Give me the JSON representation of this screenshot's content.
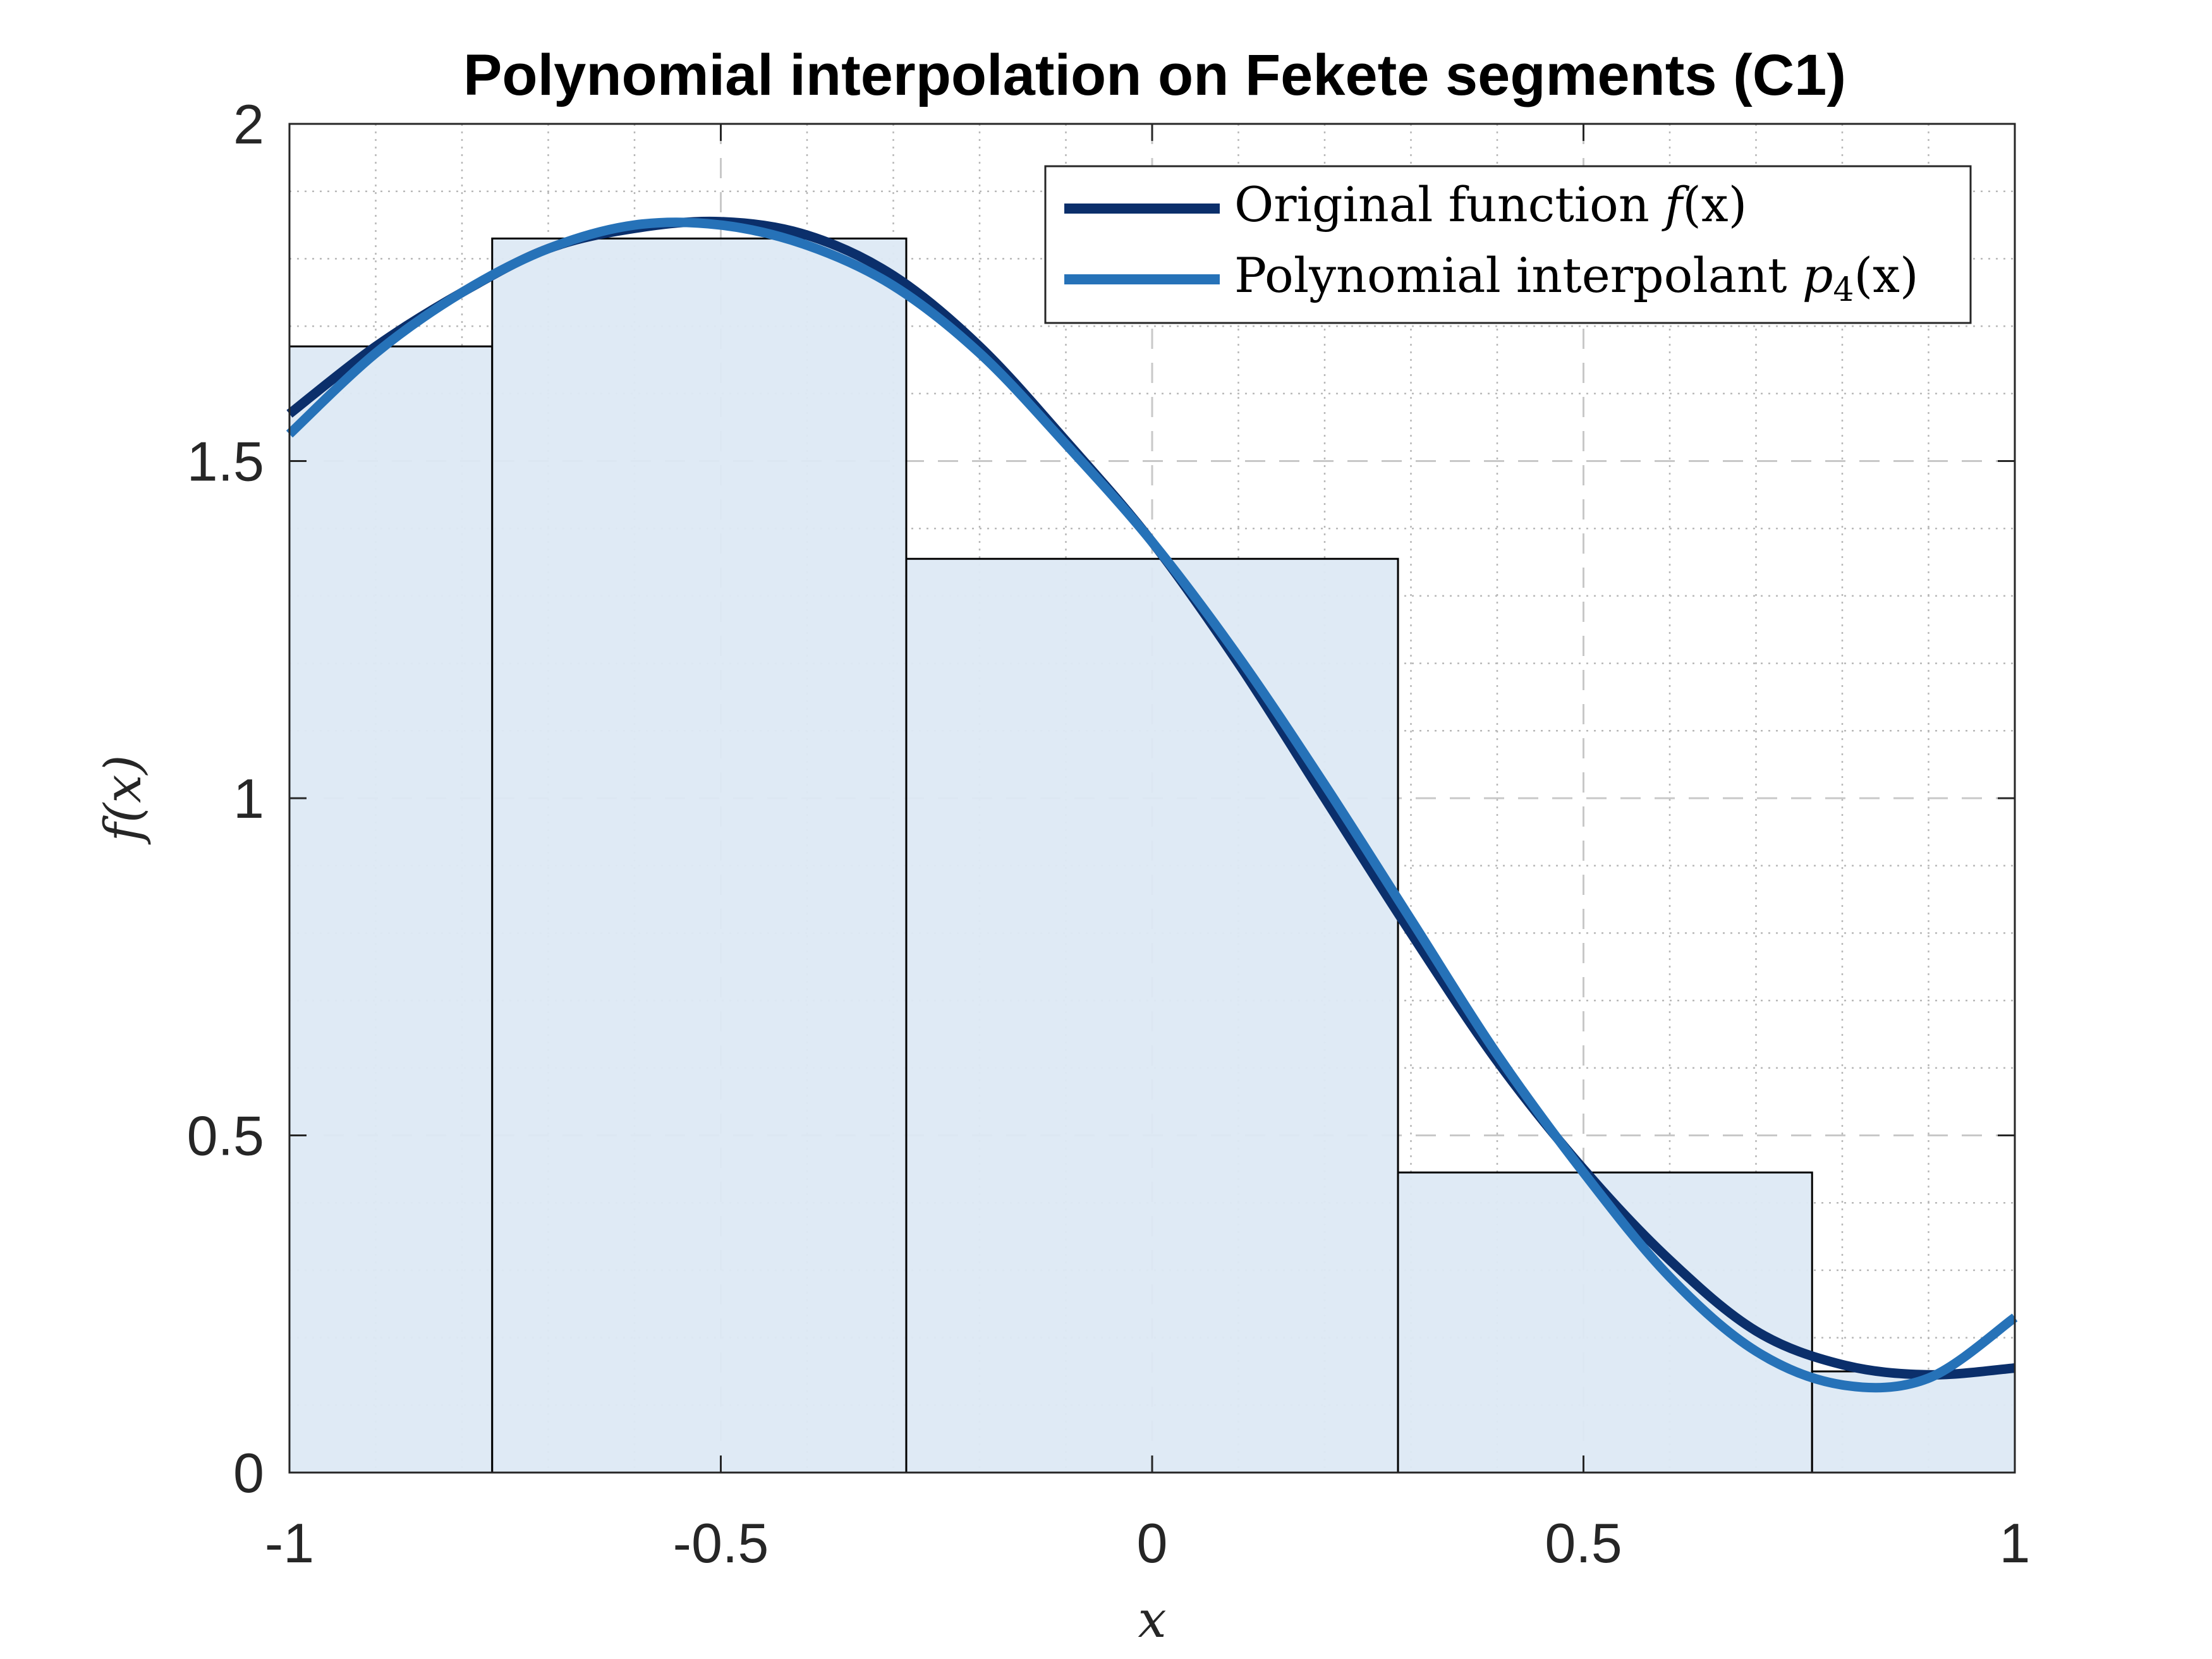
{
  "chart_data": {
    "type": "line",
    "title": "Polynomial interpolation on Fekete segments (C1)",
    "xlabel": "x",
    "ylabel": "f(x)",
    "xlim": [
      -1,
      1
    ],
    "ylim": [
      0,
      2
    ],
    "xticks": [
      -1,
      -0.5,
      0,
      0.5,
      1
    ],
    "xtick_labels": [
      "-1",
      "-0.5",
      "0",
      "0.5",
      "1"
    ],
    "yticks": [
      0,
      0.5,
      1,
      1.5,
      2
    ],
    "ytick_labels": [
      "0",
      "0.5",
      "1",
      "1.5",
      "2"
    ],
    "grid": true,
    "minor_grid": true,
    "legend_position": "top-right",
    "bars": {
      "edges": [
        -1,
        -0.765,
        -0.285,
        0.285,
        0.765,
        1
      ],
      "heights": [
        1.67,
        1.83,
        1.355,
        0.445,
        0.15
      ],
      "fill": "#dde9f4",
      "edge_color": "#000000"
    },
    "series": [
      {
        "name": "Original function f(x)",
        "legend_main": "Original function ",
        "legend_math": "f",
        "legend_sub": "",
        "legend_tail": "(x)",
        "color": "#0b2f6b",
        "x": [
          -1.0,
          -0.9,
          -0.8,
          -0.7,
          -0.6,
          -0.5,
          -0.4,
          -0.3,
          -0.2,
          -0.1,
          0.0,
          0.1,
          0.2,
          0.3,
          0.4,
          0.5,
          0.6,
          0.7,
          0.8,
          0.9,
          1.0
        ],
        "y": [
          1.57,
          1.67,
          1.75,
          1.815,
          1.845,
          1.855,
          1.835,
          1.775,
          1.67,
          1.53,
          1.38,
          1.2,
          1.0,
          0.8,
          0.61,
          0.45,
          0.315,
          0.21,
          0.16,
          0.145,
          0.155
        ]
      },
      {
        "name": "Polynomial interpolant p4(x)",
        "legend_main": "Polynomial interpolant ",
        "legend_math": "p",
        "legend_sub": "4",
        "legend_tail": "(x)",
        "color": "#2672b8",
        "x": [
          -1.0,
          -0.9,
          -0.8,
          -0.7,
          -0.6,
          -0.5,
          -0.4,
          -0.3,
          -0.2,
          -0.1,
          0.0,
          0.1,
          0.2,
          0.3,
          0.4,
          0.5,
          0.6,
          0.7,
          0.8,
          0.9,
          1.0
        ],
        "y": [
          1.54,
          1.66,
          1.75,
          1.815,
          1.85,
          1.85,
          1.82,
          1.76,
          1.66,
          1.525,
          1.38,
          1.21,
          1.02,
          0.82,
          0.62,
          0.445,
          0.29,
          0.18,
          0.13,
          0.14,
          0.23
        ]
      }
    ]
  }
}
